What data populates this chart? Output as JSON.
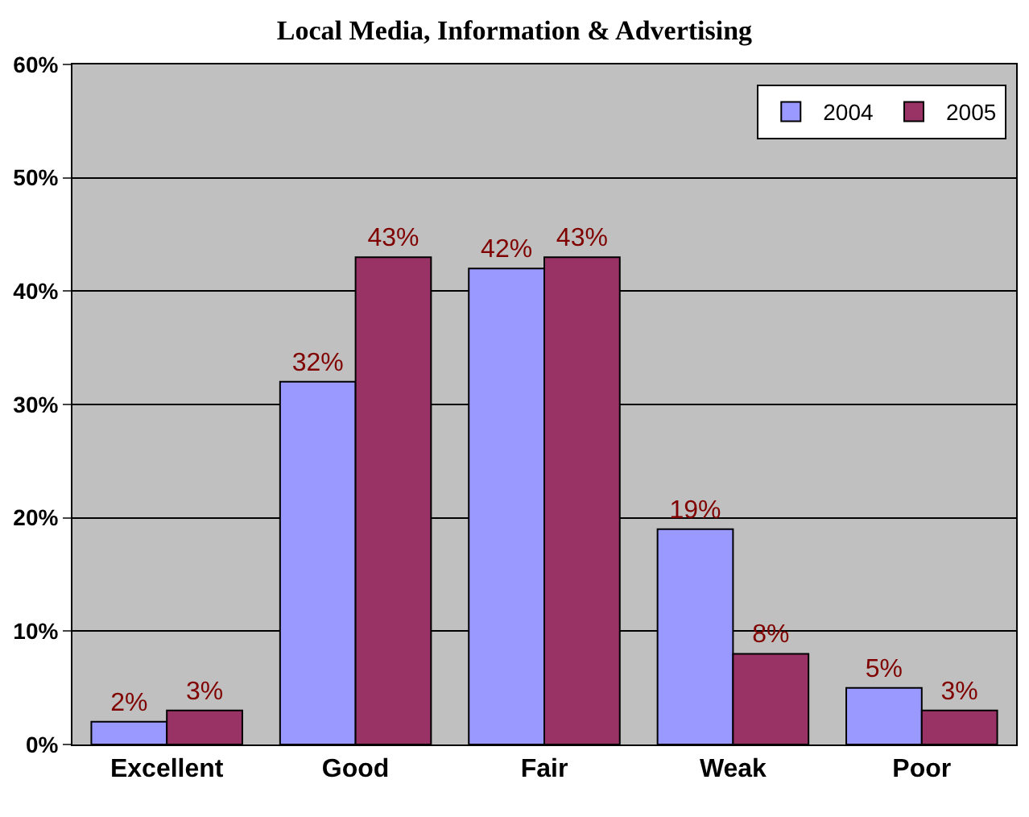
{
  "chart_data": {
    "type": "bar",
    "title": "Local Media, Information & Advertising",
    "categories": [
      "Excellent",
      "Good",
      "Fair",
      "Weak",
      "Poor"
    ],
    "series": [
      {
        "name": "2004",
        "color": "#9999ff",
        "values": [
          2,
          32,
          42,
          19,
          5
        ],
        "value_labels": [
          "2%",
          "32%",
          "42%",
          "19%",
          "5%"
        ]
      },
      {
        "name": "2005",
        "color": "#993366",
        "values": [
          3,
          43,
          43,
          8,
          3
        ],
        "value_labels": [
          "3%",
          "43%",
          "43%",
          "8%",
          "3%"
        ]
      }
    ],
    "ylim": [
      0,
      60
    ],
    "yticks": [
      {
        "value": 0,
        "label": "0%"
      },
      {
        "value": 10,
        "label": "10%"
      },
      {
        "value": 20,
        "label": "20%"
      },
      {
        "value": 30,
        "label": "30%"
      },
      {
        "value": 40,
        "label": "40%"
      },
      {
        "value": 50,
        "label": "50%"
      },
      {
        "value": 60,
        "label": "60%"
      }
    ],
    "grid": "y",
    "legend": "top right"
  }
}
